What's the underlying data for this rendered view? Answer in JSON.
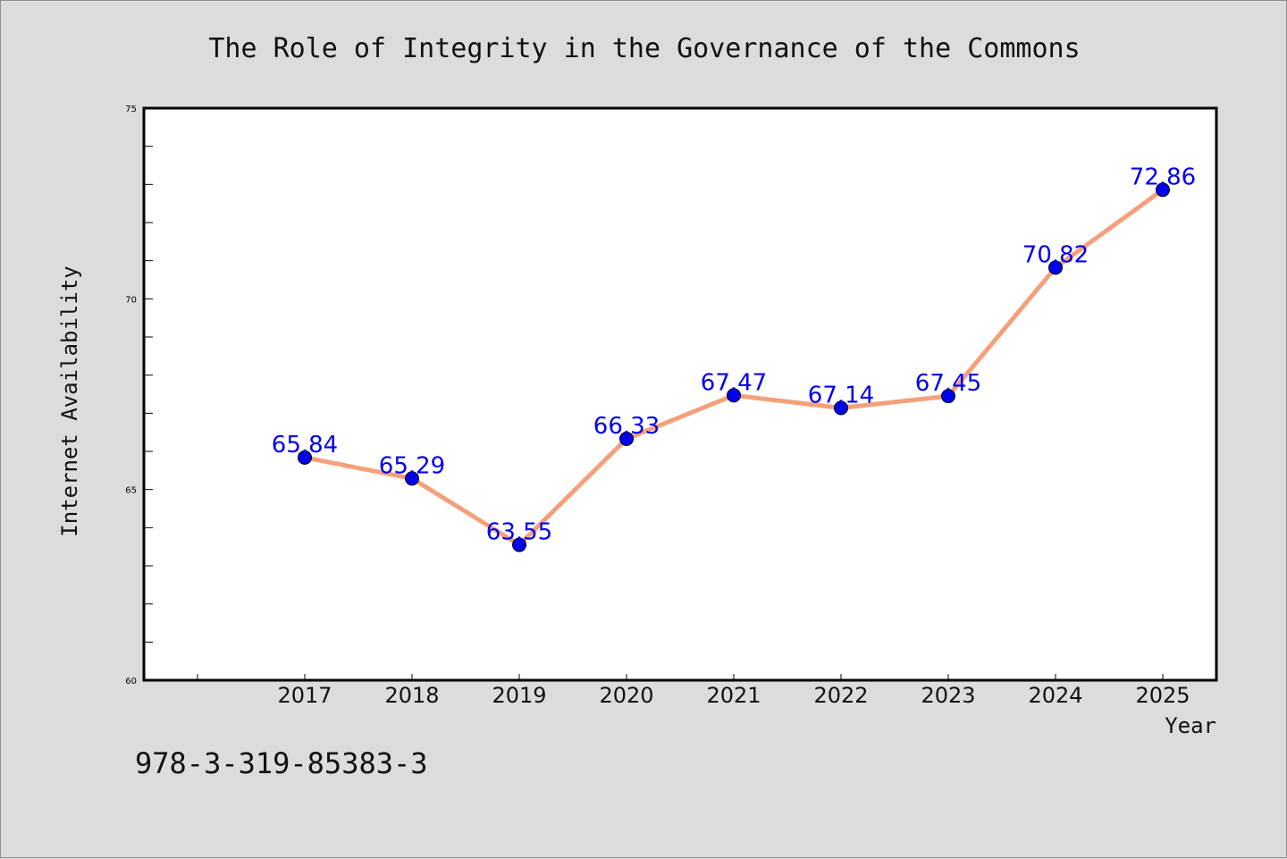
{
  "chart_data": {
    "type": "line",
    "title": "The Role of Integrity in the Governance of the Commons",
    "xlabel": "Year",
    "ylabel": "Internet Availability",
    "categories": [
      "2017",
      "2018",
      "2019",
      "2020",
      "2021",
      "2022",
      "2023",
      "2024",
      "2025"
    ],
    "x_axis_range": [
      2015.5,
      2025.5
    ],
    "series": [
      {
        "values": [
          65.84,
          65.29,
          63.55,
          66.33,
          67.47,
          67.14,
          67.45,
          70.82,
          72.86
        ],
        "data_labels": [
          "65.84",
          "65.29",
          "63.55",
          "66.33",
          "67.47",
          "67.14",
          "67.45",
          "70.82",
          "72.86"
        ],
        "line_color": "#f4a07a",
        "marker_color": "#0000ee"
      }
    ],
    "ylim": [
      60,
      75
    ],
    "y_ticks": [
      "60",
      "65",
      "70",
      "75"
    ],
    "grid": false,
    "legend": "none",
    "label_color": "#0000ee",
    "background_color": "#dcdcdc",
    "plot_background_color": "#ffffff"
  },
  "footer": {
    "isbn": "978-3-319-85383-3"
  }
}
